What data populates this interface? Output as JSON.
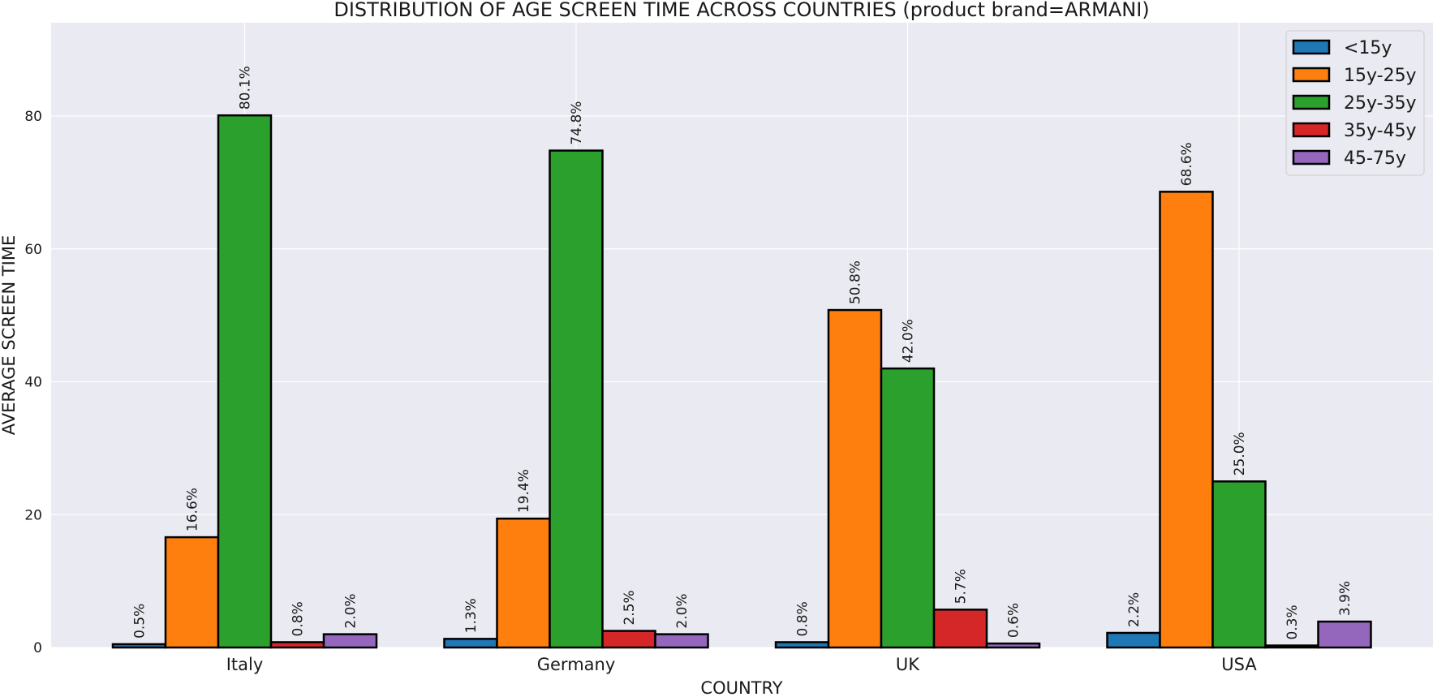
{
  "chart_data": {
    "type": "bar",
    "title": "DISTRIBUTION OF AGE SCREEN TIME ACROSS COUNTRIES (product brand=ARMANI)",
    "xlabel": "COUNTRY",
    "ylabel": "AVERAGE SCREEN TIME",
    "categories": [
      "Italy",
      "Germany",
      "UK",
      "USA"
    ],
    "ylim": [
      0,
      94
    ],
    "yticks": [
      0,
      20,
      40,
      60,
      80
    ],
    "grid": true,
    "legend_position": "top-right",
    "series": [
      {
        "name": "<15y",
        "color": "#1f77b4",
        "values": [
          0.5,
          1.3,
          0.8,
          2.2
        ],
        "labels": [
          "0.5%",
          "1.3%",
          "0.8%",
          "2.2%"
        ]
      },
      {
        "name": "15y-25y",
        "color": "#ff7f0e",
        "values": [
          16.6,
          19.4,
          50.8,
          68.6
        ],
        "labels": [
          "16.6%",
          "19.4%",
          "50.8%",
          "68.6%"
        ]
      },
      {
        "name": "25y-35y",
        "color": "#2ca02c",
        "values": [
          80.1,
          74.8,
          42.0,
          25.0
        ],
        "labels": [
          "80.1%",
          "74.8%",
          "42.0%",
          "25.0%"
        ]
      },
      {
        "name": "35y-45y",
        "color": "#d62728",
        "values": [
          0.8,
          2.5,
          5.7,
          0.3
        ],
        "labels": [
          "0.8%",
          "2.5%",
          "5.7%",
          "0.3%"
        ]
      },
      {
        "name": "45-75y",
        "color": "#9467bd",
        "values": [
          2.0,
          2.0,
          0.6,
          3.9
        ],
        "labels": [
          "2.0%",
          "2.0%",
          "0.6%",
          "3.9%"
        ]
      }
    ]
  }
}
